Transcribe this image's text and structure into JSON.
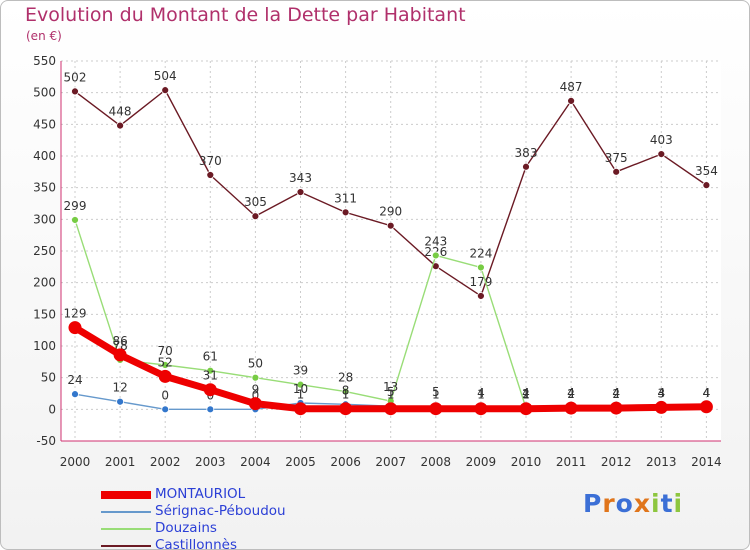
{
  "title": "Evolution du Montant de la Dette par Habitant",
  "subtitle": "(en €)",
  "logo": {
    "text": "Proxiti",
    "letter_colors": [
      "#3b6fd6",
      "#e0751b",
      "#3b6fd6",
      "#e0751b",
      "#8dc63f",
      "#3b6fd6",
      "#8dc63f"
    ]
  },
  "chart_data": {
    "type": "line",
    "title": "Evolution du Montant de la Dette par Habitant",
    "subtitle": "(en €)",
    "xlabel": "",
    "ylabel": "",
    "x": [
      "2000",
      "2001",
      "2002",
      "2003",
      "2004",
      "2005",
      "2006",
      "2007",
      "2008",
      "2009",
      "2010",
      "2011",
      "2012",
      "2013",
      "2014"
    ],
    "ylim": [
      -50,
      550
    ],
    "yticks": [
      -50,
      0,
      50,
      100,
      150,
      200,
      250,
      300,
      350,
      400,
      450,
      500,
      550
    ],
    "grid": true,
    "legend_position": "bottom-left",
    "series": [
      {
        "name": "Castillonnès",
        "color": "#6b1a24",
        "dot_color": "#6b1a24",
        "values": [
          502,
          448,
          504,
          370,
          305,
          343,
          311,
          290,
          226,
          179,
          383,
          487,
          375,
          403,
          354
        ],
        "labels": [
          "502",
          "448",
          "504",
          "370",
          "305",
          "343",
          "311",
          "290",
          "226",
          "179",
          "383",
          "487",
          "375",
          "403",
          "354"
        ]
      },
      {
        "name": "Douzains",
        "color": "#99dd77",
        "dot_color": "#77cc44",
        "values": [
          299,
          78,
          70,
          61,
          50,
          39,
          28,
          13,
          243,
          224,
          2,
          4,
          4,
          4,
          4
        ],
        "labels": [
          "299",
          "78",
          "70",
          "61",
          "50",
          "39",
          "28",
          "13",
          "243",
          "224",
          "2",
          "4",
          "4",
          "4",
          "4"
        ]
      },
      {
        "name": "Sérignac-Péboudou",
        "color": "#6699cc",
        "dot_color": "#3377cc",
        "values": [
          24,
          12,
          0,
          0,
          0,
          10,
          8,
          5,
          5,
          4,
          4,
          4,
          4,
          4,
          4
        ],
        "labels": [
          "24",
          "12",
          "0",
          "0",
          "0",
          "10",
          "8",
          "5",
          "5",
          "4",
          "4",
          "4",
          "4",
          "4",
          "4"
        ]
      },
      {
        "name": "MONTAURIOL",
        "color": "#ee0000",
        "dot_color": "#ee0000",
        "values": [
          129,
          86,
          52,
          31,
          9,
          1,
          1,
          1,
          1,
          1,
          1,
          2,
          2,
          3,
          4
        ],
        "labels": [
          "129",
          "86",
          "52",
          "31",
          "9",
          "1",
          "1",
          "1",
          "1",
          "1",
          "1",
          "2",
          "2",
          "3",
          "4"
        ]
      }
    ],
    "legend": [
      {
        "name": "MONTAURIOL",
        "color": "#ee0000"
      },
      {
        "name": "Sérignac-Péboudou",
        "color": "#6699cc"
      },
      {
        "name": "Douzains",
        "color": "#99dd77"
      },
      {
        "name": "Castillonnès",
        "color": "#6b1a24"
      }
    ]
  }
}
